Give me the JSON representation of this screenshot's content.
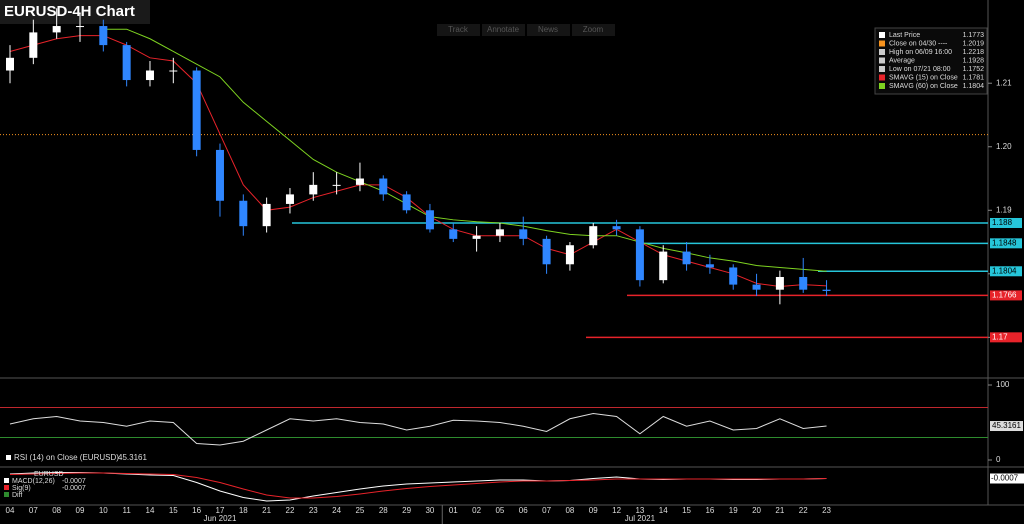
{
  "title": "EURUSD-4H Chart",
  "toolbar": [
    "Track",
    "Annotate",
    "News",
    "Zoom"
  ],
  "legend_panel": [
    {
      "label": "Last Price",
      "value": 1.1773,
      "color": "#ffffff"
    },
    {
      "label": "Close on 04/30 ----",
      "value": 1.2019,
      "color": "#f7931e"
    },
    {
      "label": "High on 06/09 16:00",
      "value": 1.2218,
      "color": "#cccccc"
    },
    {
      "label": "Average",
      "value": 1.1928,
      "color": "#cccccc"
    },
    {
      "label": "Low on 07/21 08:00",
      "value": 1.1752,
      "color": "#cccccc"
    },
    {
      "label": "SMAVG (15)  on Close",
      "value": 1.1781,
      "color": "#e8232a"
    },
    {
      "label": "SMAVG (60)  on Close",
      "value": 1.1804,
      "color": "#7ed321"
    }
  ],
  "months": [
    "Jun 2021",
    "Jul 2021"
  ],
  "chart_data": [
    {
      "type": "candlestick",
      "categories": [
        "04",
        "07",
        "08",
        "09",
        "10",
        "11",
        "14",
        "15",
        "16",
        "17",
        "18",
        "21",
        "22",
        "23",
        "24",
        "25",
        "28",
        "29",
        "30",
        "01",
        "02",
        "05",
        "06",
        "07",
        "08",
        "09",
        "12",
        "13",
        "14",
        "15",
        "16",
        "19",
        "20",
        "21",
        "22",
        "23"
      ],
      "open": [
        1.212,
        1.214,
        1.218,
        1.219,
        1.219,
        1.216,
        1.2105,
        1.212,
        1.212,
        1.1995,
        1.1915,
        1.1875,
        1.191,
        1.1925,
        1.194,
        1.194,
        1.195,
        1.1925,
        1.19,
        1.187,
        1.1855,
        1.186,
        1.187,
        1.1855,
        1.1815,
        1.1845,
        1.1875,
        1.187,
        1.179,
        1.1835,
        1.1815,
        1.181,
        1.1783,
        1.1775,
        1.1795,
        1.1775
      ],
      "high": [
        1.216,
        1.22,
        1.2218,
        1.221,
        1.22,
        1.2165,
        1.2135,
        1.214,
        1.2125,
        1.2005,
        1.1925,
        1.192,
        1.1935,
        1.196,
        1.196,
        1.1975,
        1.1955,
        1.193,
        1.191,
        1.188,
        1.1875,
        1.188,
        1.189,
        1.186,
        1.185,
        1.188,
        1.1885,
        1.1875,
        1.1845,
        1.185,
        1.183,
        1.1815,
        1.18,
        1.1805,
        1.1825,
        1.179
      ],
      "low": [
        1.21,
        1.213,
        1.217,
        1.2165,
        1.215,
        1.2095,
        1.2095,
        1.21,
        1.1985,
        1.189,
        1.186,
        1.1865,
        1.1895,
        1.1915,
        1.1925,
        1.193,
        1.1915,
        1.1895,
        1.1865,
        1.185,
        1.1835,
        1.185,
        1.1845,
        1.18,
        1.1805,
        1.184,
        1.186,
        1.178,
        1.1785,
        1.1805,
        1.18,
        1.1775,
        1.1765,
        1.1752,
        1.177,
        1.1765
      ],
      "close": [
        1.214,
        1.218,
        1.219,
        1.219,
        1.216,
        1.2105,
        1.212,
        1.212,
        1.1995,
        1.1915,
        1.1875,
        1.191,
        1.1925,
        1.194,
        1.194,
        1.195,
        1.1925,
        1.19,
        1.187,
        1.1855,
        1.186,
        1.187,
        1.1855,
        1.1815,
        1.1845,
        1.1875,
        1.187,
        1.179,
        1.1835,
        1.1815,
        1.181,
        1.1783,
        1.1775,
        1.1795,
        1.1775,
        1.1773
      ],
      "up_color": "#ffffff",
      "down_color": "#2f86ff",
      "series": [
        {
          "name": "SMAVG (15)",
          "color": "#e8232a",
          "values": [
            1.215,
            1.216,
            1.217,
            1.2175,
            1.2175,
            1.216,
            1.214,
            1.2135,
            1.21,
            1.202,
            1.194,
            1.19,
            1.1905,
            1.192,
            1.193,
            1.194,
            1.194,
            1.192,
            1.189,
            1.187,
            1.186,
            1.186,
            1.186,
            1.184,
            1.183,
            1.185,
            1.187,
            1.185,
            1.183,
            1.182,
            1.181,
            1.18,
            1.1785,
            1.178,
            1.1783,
            1.1781
          ]
        },
        {
          "name": "SMAVG (60)",
          "color": "#7ed321",
          "values": [
            null,
            null,
            null,
            null,
            1.2185,
            1.2185,
            1.217,
            1.215,
            1.213,
            1.211,
            1.207,
            1.204,
            1.201,
            1.198,
            1.196,
            1.1945,
            1.193,
            1.191,
            1.189,
            1.1885,
            1.1882,
            1.188,
            1.1875,
            1.1868,
            1.1862,
            1.186,
            1.186,
            1.185,
            1.184,
            1.1833,
            1.1825,
            1.182,
            1.1813,
            1.181,
            1.1807,
            1.1804
          ]
        }
      ],
      "levels": [
        {
          "value": 1.188,
          "color": "#26c6da"
        },
        {
          "value": 1.1848,
          "color": "#26c6da"
        },
        {
          "value": 1.1804,
          "color": "#26c6da"
        },
        {
          "value": 1.1766,
          "color": "#e8232a"
        },
        {
          "value": 1.17,
          "color": "#e8232a"
        }
      ],
      "ylim": [
        1.1636,
        1.2231
      ],
      "yticks": [
        1.17,
        1.18,
        1.19,
        {
          "value": 1.2,
          "label": "1.20"
        },
        1.21
      ]
    },
    {
      "type": "line",
      "legend": "RSI (14)  on Close (EURUSD)",
      "series": [
        {
          "name": "RSI (14)",
          "color": "#dddddd",
          "values": [
            48,
            55,
            58,
            52,
            50,
            45,
            52,
            50,
            22,
            20,
            25,
            40,
            55,
            52,
            55,
            50,
            48,
            40,
            45,
            53,
            52,
            50,
            45,
            38,
            55,
            62,
            58,
            35,
            58,
            45,
            52,
            40,
            42,
            55,
            42,
            45.3161
          ]
        }
      ],
      "levels": [
        {
          "value": 70,
          "color": "#c0272d"
        },
        {
          "value": 30,
          "color": "#2e8b2e"
        }
      ],
      "ylim": [
        0,
        100
      ],
      "yticks": [
        0,
        100
      ]
    },
    {
      "type": "line",
      "legend": "EURUSD",
      "series": [
        {
          "name": "MACD(12,26)",
          "color": "#ffffff",
          "values": [
            0.0002,
            0.0004,
            0.0005,
            0.0005,
            0.0004,
            0.0002,
            0.0,
            -0.0001,
            -0.0015,
            -0.0032,
            -0.0045,
            -0.0052,
            -0.005,
            -0.0042,
            -0.0035,
            -0.0028,
            -0.0022,
            -0.0018,
            -0.0016,
            -0.0014,
            -0.0012,
            -0.001,
            -0.001,
            -0.0012,
            -0.0011,
            -0.0007,
            -0.0004,
            -0.0008,
            -0.0009,
            -0.0008,
            -0.0008,
            -0.0009,
            -0.0009,
            -0.0008,
            -0.0008,
            -0.0007
          ]
        },
        {
          "name": "Sig(9)",
          "color": "#e8232a",
          "values": [
            0.0001,
            0.0002,
            0.0003,
            0.0004,
            0.0004,
            0.0003,
            0.0002,
            0.0001,
            -0.0005,
            -0.0015,
            -0.0028,
            -0.004,
            -0.0046,
            -0.0046,
            -0.0043,
            -0.0038,
            -0.0032,
            -0.0027,
            -0.0023,
            -0.002,
            -0.0017,
            -0.0014,
            -0.0012,
            -0.0012,
            -0.0011,
            -0.001,
            -0.0008,
            -0.0008,
            -0.0008,
            -0.0008,
            -0.0008,
            -0.0008,
            -0.0008,
            -0.0008,
            -0.0008,
            -0.0007
          ]
        }
      ],
      "extra_legend": "Diff",
      "ylim": [
        -0.006,
        0.001
      ]
    }
  ]
}
